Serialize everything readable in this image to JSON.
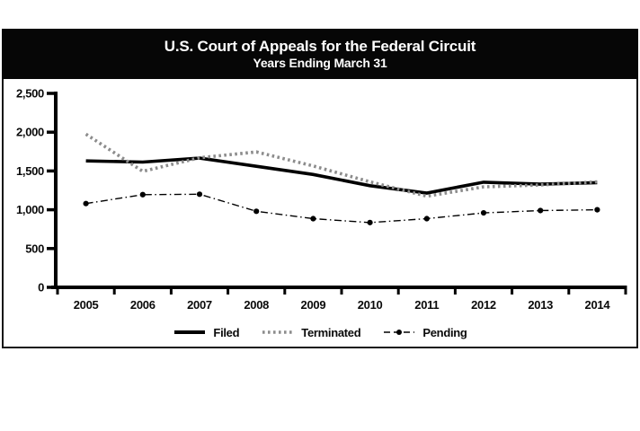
{
  "header": {
    "title": "U.S. Court of Appeals for the Federal Circuit",
    "subtitle": "Years Ending March 31"
  },
  "chart_data": {
    "type": "line",
    "title": "U.S. Court of Appeals for the Federal Circuit",
    "subtitle": "Years Ending March 31",
    "x": [
      "2005",
      "2006",
      "2007",
      "2008",
      "2009",
      "2010",
      "2011",
      "2012",
      "2013",
      "2014"
    ],
    "series": [
      {
        "name": "Filed",
        "style": "solid",
        "color": "#000000",
        "markers": false,
        "values": [
          1630,
          1615,
          1665,
          1560,
          1455,
          1310,
          1215,
          1355,
          1330,
          1350
        ]
      },
      {
        "name": "Terminated",
        "style": "dotted",
        "color": "#8c8c8c",
        "markers": false,
        "values": [
          1975,
          1495,
          1670,
          1745,
          1565,
          1360,
          1175,
          1295,
          1320,
          1360
        ]
      },
      {
        "name": "Pending",
        "style": "dashdot",
        "color": "#000000",
        "markers": true,
        "values": [
          1080,
          1195,
          1200,
          980,
          885,
          835,
          885,
          960,
          990,
          1000
        ]
      }
    ],
    "xlabel": "",
    "ylabel": "",
    "ylim": [
      0,
      2500
    ],
    "ytick_interval": 500,
    "ytick_labels": [
      "0",
      "500",
      "1,000",
      "1,500",
      "2,000",
      "2,500"
    ],
    "grid": false,
    "legend_position": "bottom-center"
  },
  "colors": {
    "title_bar_bg": "#060606",
    "title_text": "#ffffff",
    "axis": "#000000",
    "terminated_line": "#8c8c8c"
  }
}
